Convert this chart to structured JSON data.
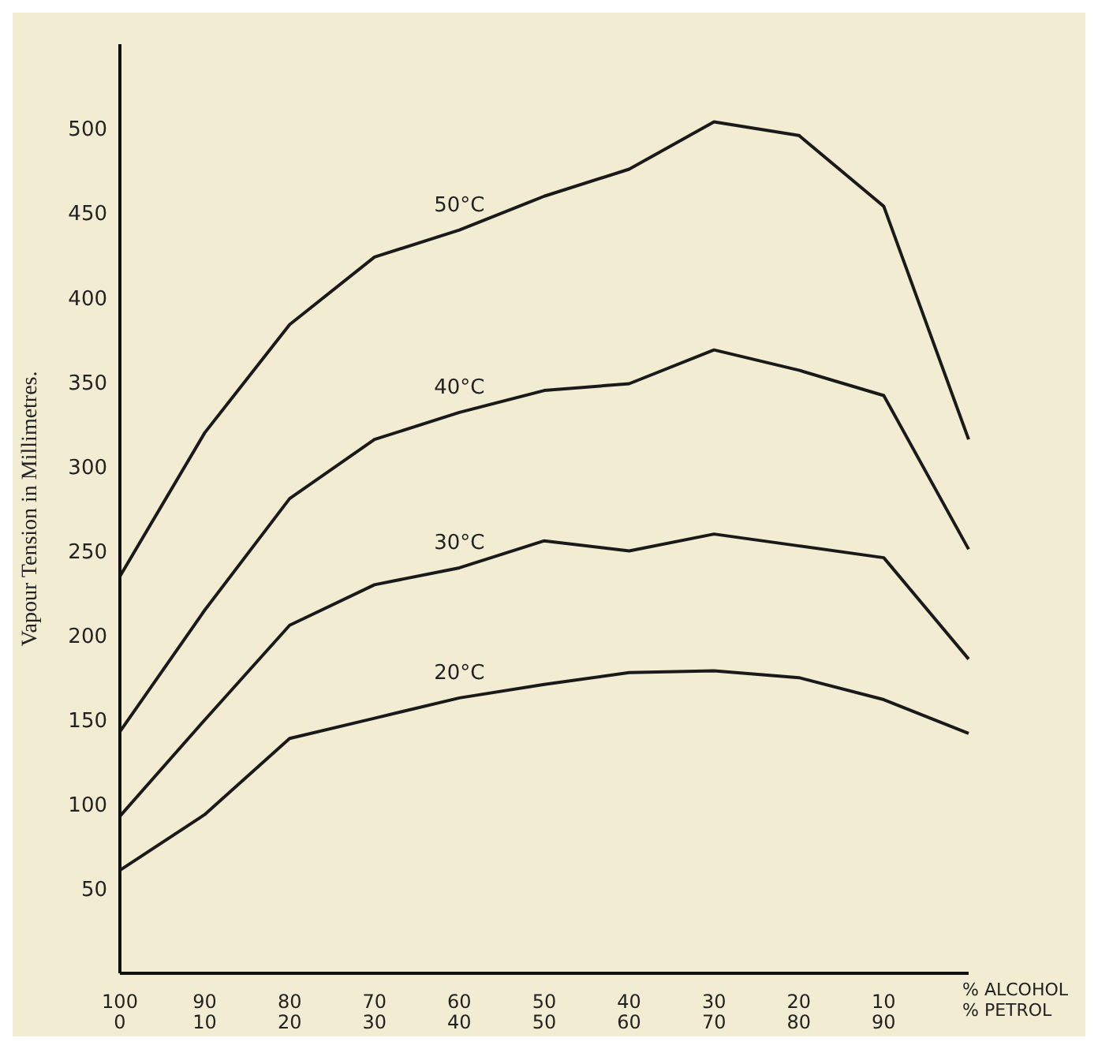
{
  "chart_data": {
    "type": "line",
    "ylabel": "Vapour Tension in Millimetres.",
    "xlabel": "% ALCOHOL\n% PETROL",
    "categories": [
      "100\n0",
      "90\n10",
      "80\n20",
      "70\n30",
      "60\n40",
      "50\n50",
      "40\n60",
      "30\n70",
      "20\n80",
      "10\n90",
      null
    ],
    "series": [
      {
        "name": "50°C",
        "color": "#1a1a1a",
        "values": [
          235,
          320,
          384,
          424,
          440,
          460,
          476,
          504,
          496,
          454,
          316
        ]
      },
      {
        "name": "40°C",
        "color": "#1a1a1a",
        "values": [
          143,
          215,
          281,
          316,
          332,
          345,
          349,
          369,
          357,
          342,
          251
        ]
      },
      {
        "name": "30°C",
        "color": "#1a1a1a",
        "values": [
          93,
          150,
          206,
          230,
          240,
          256,
          250,
          260,
          253,
          246,
          186
        ]
      },
      {
        "name": "20°C",
        "color": "#1a1a1a",
        "values": [
          61,
          94,
          139,
          151,
          163,
          171,
          178,
          179,
          175,
          162,
          142
        ]
      }
    ],
    "ylim": [
      0,
      550
    ],
    "yticks": [
      50,
      100,
      150,
      200,
      250,
      300,
      350,
      400,
      450,
      500
    ],
    "grid": false,
    "legend": false,
    "marker": "none",
    "line_style": "solid"
  }
}
